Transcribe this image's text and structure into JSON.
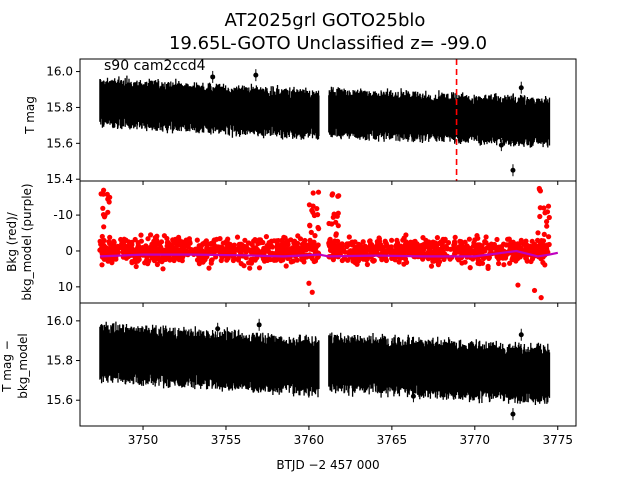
{
  "title_line1": "AT2025grl  GOTO25blo",
  "title_line2": "19.65L-GOTO Unclassified z= -99.0",
  "xlabel": "BTJD −2 457 000",
  "colors": {
    "panel1": "#000000",
    "bkg": "#ff0000",
    "bkg_model": "#bf00bf",
    "marker": "#ff0000",
    "panel3": "#000000"
  },
  "chart_data": [
    {
      "type": "scatter",
      "panel": "top",
      "ylabel": "T mag",
      "annotation": "s90 cam2ccd4",
      "y_inverted": true,
      "xlim": [
        3746.2,
        3776.1
      ],
      "ylim": [
        16.07,
        15.39
      ],
      "xticks": [
        3750,
        3755,
        3760,
        3765,
        3770,
        3775
      ],
      "yticks": [
        15.4,
        15.6,
        15.8,
        16.0
      ],
      "vertical_line_x": 3768.9,
      "series": [
        {
          "segments": [
            {
              "x_start": 3747.4,
              "x_end": 3760.6,
              "center_start": 15.83,
              "center_end": 15.76,
              "halfwidth": 0.11
            },
            {
              "x_start": 3761.2,
              "x_end": 3774.5,
              "center_start": 15.77,
              "center_end": 15.72,
              "halfwidth": 0.11
            }
          ]
        }
      ],
      "notable_points": [
        {
          "x": 3772.3,
          "y": 15.45
        },
        {
          "x": 3772.8,
          "y": 15.91
        },
        {
          "x": 3754.2,
          "y": 15.97
        },
        {
          "x": 3756.8,
          "y": 15.98
        },
        {
          "x": 3766.3,
          "y": 15.64
        },
        {
          "x": 3771.6,
          "y": 15.59
        }
      ]
    },
    {
      "type": "scatter",
      "panel": "middle",
      "ylabel_line1": "Bkg (red)/",
      "ylabel_line2": "bkg_model (purple)",
      "xlim": [
        3746.2,
        3776.1
      ],
      "ylim": [
        -19.5,
        14.5
      ],
      "yticks": [
        -10,
        0,
        10
      ],
      "series": [
        {
          "segments": [
            {
              "x_start": 3747.4,
              "x_end": 3760.6,
              "center": 0,
              "halfwidth": 4.5
            },
            {
              "x_start": 3761.2,
              "x_end": 3774.5,
              "center": 0,
              "halfwidth": 4.5
            }
          ],
          "edge_dips": [
            {
              "x_start": 3747.4,
              "x_end": 3748.0,
              "y_low": -17.0
            },
            {
              "x_start": 3760.0,
              "x_end": 3760.6,
              "y_low": -17.5
            },
            {
              "x_start": 3761.2,
              "x_end": 3761.8,
              "y_low": -16.0
            },
            {
              "x_start": 3773.8,
              "x_end": 3774.5,
              "y_low": -17.5
            }
          ],
          "outliers": [
            {
              "x": 3760.2,
              "y": 11.5
            },
            {
              "x": 3774.0,
              "y": 13.0
            },
            {
              "x": 3773.6,
              "y": 11.0
            },
            {
              "x": 3772.6,
              "y": 9.5
            },
            {
              "x": 3760.0,
              "y": 9.0
            }
          ]
        },
        {
          "model": [
            {
              "x": 3747.4,
              "y": 1.5
            },
            {
              "x": 3750,
              "y": 1.0
            },
            {
              "x": 3753,
              "y": 1.0
            },
            {
              "x": 3756,
              "y": 1.2
            },
            {
              "x": 3758.5,
              "y": 1.5
            },
            {
              "x": 3760.6,
              "y": 1.0
            },
            {
              "x": 3761.2,
              "y": 1.5
            },
            {
              "x": 3764,
              "y": 1.3
            },
            {
              "x": 3767,
              "y": 1.5
            },
            {
              "x": 3770,
              "y": 1.5
            },
            {
              "x": 3772.5,
              "y": 0.0
            },
            {
              "x": 3773.8,
              "y": 1.5
            },
            {
              "x": 3774.5,
              "y": 1.0
            },
            {
              "x": 3775.0,
              "y": 0.5
            }
          ]
        }
      ]
    },
    {
      "type": "scatter",
      "panel": "bottom",
      "ylabel_line1": "T mag −",
      "ylabel_line2": "bkg_model",
      "y_inverted": true,
      "xlim": [
        3746.2,
        3776.1
      ],
      "ylim": [
        16.09,
        15.47
      ],
      "xticks": [
        3750,
        3755,
        3760,
        3765,
        3770,
        3775
      ],
      "yticks": [
        15.6,
        15.8,
        16.0
      ],
      "series": [
        {
          "segments": [
            {
              "x_start": 3747.4,
              "x_end": 3760.6,
              "center_start": 15.84,
              "center_end": 15.77,
              "halfwidth": 0.12
            },
            {
              "x_start": 3761.2,
              "x_end": 3774.5,
              "center_start": 15.79,
              "center_end": 15.73,
              "halfwidth": 0.12
            }
          ]
        }
      ],
      "notable_points": [
        {
          "x": 3772.3,
          "y": 15.53
        },
        {
          "x": 3772.8,
          "y": 15.93
        },
        {
          "x": 3757.0,
          "y": 15.98
        },
        {
          "x": 3766.3,
          "y": 15.62
        },
        {
          "x": 3754.5,
          "y": 15.96
        }
      ]
    }
  ]
}
